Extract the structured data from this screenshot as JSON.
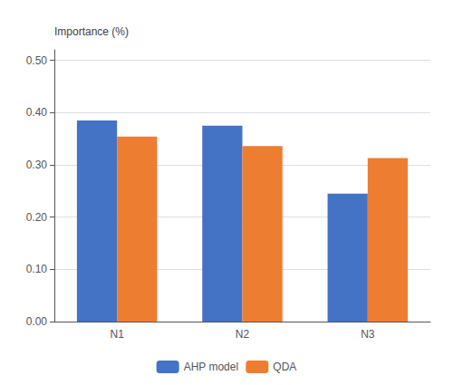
{
  "chart_data": {
    "type": "bar",
    "y_label": "Importance (%)",
    "categories": [
      "N1",
      "N2",
      "N3"
    ],
    "series": [
      {
        "name": "AHP model",
        "color": "#4472C4",
        "values": [
          0.385,
          0.375,
          0.245
        ]
      },
      {
        "name": "QDA",
        "color": "#ED7D31",
        "values": [
          0.354,
          0.336,
          0.313
        ]
      }
    ],
    "ylim": [
      0.0,
      0.52
    ],
    "yticks": [
      {
        "value": 0.0,
        "label": "0.00"
      },
      {
        "value": 0.1,
        "label": "0.10"
      },
      {
        "value": 0.2,
        "label": "0.20"
      },
      {
        "value": 0.3,
        "label": "0.30"
      },
      {
        "value": 0.4,
        "label": "0.40"
      },
      {
        "value": 0.5,
        "label": "0.50"
      }
    ],
    "grid": true,
    "legend": "bottom"
  }
}
